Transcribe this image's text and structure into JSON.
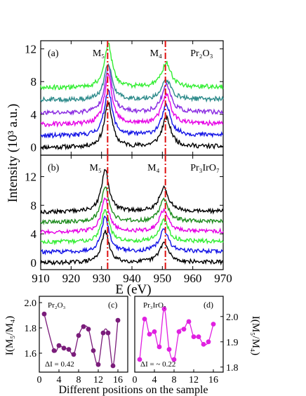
{
  "figure": {
    "ylabel_main": "Intensity (10³ a.u.)",
    "xlabel_main": "E (eV)",
    "xlabel_bottom": "Different positions on the sample"
  },
  "chart_data": [
    {
      "id": "a",
      "type": "line",
      "panel_label": "(a)",
      "peak_labels": [
        "M₅",
        "M₄"
      ],
      "compound": "Pr₂O₃",
      "xlim": [
        910,
        970
      ],
      "ylim": [
        -1,
        13
      ],
      "yticks": [
        0,
        4,
        8,
        12
      ],
      "yticklabels": [
        "0",
        "4",
        "8",
        "12"
      ],
      "xticks": [
        910,
        920,
        930,
        940,
        950,
        960,
        970
      ],
      "xticklabels": [
        "910",
        "920",
        "930",
        "940",
        "950",
        "960",
        "970"
      ],
      "reference_lines": [
        932,
        951
      ],
      "peaks": {
        "m5": 932.2,
        "m4": 951.3
      },
      "series": [
        {
          "color": "#000000",
          "offset": 0.0,
          "m5": 5.5,
          "m4": 3.5
        },
        {
          "color": "#1414e6",
          "offset": 1.4,
          "m5": 5.6,
          "m4": 3.6
        },
        {
          "color": "#e600e6",
          "offset": 2.8,
          "m5": 5.9,
          "m4": 3.6
        },
        {
          "color": "#8a2be2",
          "offset": 4.2,
          "m5": 5.6,
          "m4": 3.4
        },
        {
          "color": "#2e8b8b",
          "offset": 5.8,
          "m5": 4.4,
          "m4": 2.4
        },
        {
          "color": "#33ee33",
          "offset": 7.3,
          "m5": 5.3,
          "m4": 3.0
        }
      ]
    },
    {
      "id": "b",
      "type": "line",
      "panel_label": "(b)",
      "peak_labels": [
        "M₅",
        "M₄"
      ],
      "compound": "Pr₃IrO₇",
      "xlim": [
        910,
        970
      ],
      "ylim": [
        -1,
        15
      ],
      "yticks": [
        0,
        4,
        8,
        12
      ],
      "yticklabels": [
        "0",
        "4",
        "8",
        "12"
      ],
      "xticks": [
        910,
        920,
        930,
        940,
        950,
        960,
        970
      ],
      "xticklabels": [
        "910",
        "920",
        "930",
        "940",
        "950",
        "960",
        "970"
      ],
      "reference_lines": [
        932,
        951
      ],
      "peaks": {
        "m5": 931.2,
        "m4": 950.5
      },
      "series": [
        {
          "color": "#000000",
          "offset": 0.0,
          "m5": 4.3,
          "m4": 2.7
        },
        {
          "color": "#1414e6",
          "offset": 1.5,
          "m5": 4.9,
          "m4": 3.0
        },
        {
          "color": "#33ee33",
          "offset": 2.9,
          "m5": 4.5,
          "m4": 3.0
        },
        {
          "color": "#e600e6",
          "offset": 4.3,
          "m5": 4.6,
          "m4": 3.0
        },
        {
          "color": "#1e8c1e",
          "offset": 5.7,
          "m5": 4.9,
          "m4": 3.0
        },
        {
          "color": "#000000",
          "offset": 7.1,
          "m5": 5.8,
          "m4": 3.3
        }
      ]
    },
    {
      "id": "c",
      "type": "scatter",
      "panel_label": "(c)",
      "compound": "Pr₂O₃",
      "ylabel": "I(M₅/M₄)",
      "annotation": "ΔI = 0.42",
      "color": "#7a1c7a",
      "xlim": [
        0,
        18
      ],
      "ylim": [
        1.45,
        2.05
      ],
      "xticks": [
        0,
        4,
        8,
        12,
        16
      ],
      "xticklabels": [
        "0",
        "4",
        "8",
        "12",
        "16"
      ],
      "yticks": [
        1.6,
        1.8,
        2.0
      ],
      "yticklabels": [
        "1.6",
        "1.8",
        "2.0"
      ],
      "points": [
        [
          1,
          1.91
        ],
        [
          3,
          1.62
        ],
        [
          4,
          1.66
        ],
        [
          5,
          1.64
        ],
        [
          6,
          1.63
        ],
        [
          7,
          1.59
        ],
        [
          8,
          1.74
        ],
        [
          9,
          1.81
        ],
        [
          10,
          1.79
        ],
        [
          11,
          1.62
        ],
        [
          12,
          1.51
        ],
        [
          13,
          1.76
        ],
        [
          14,
          1.76
        ],
        [
          15,
          1.5
        ],
        [
          16,
          1.86
        ]
      ]
    },
    {
      "id": "d",
      "type": "scatter",
      "panel_label": "(d)",
      "compound": "Pr₃IrO₇",
      "ylabel": "I(M₅/M₄)",
      "annotation": "ΔI = ~ 0.22",
      "color": "#e020e0",
      "xlim": [
        0,
        18
      ],
      "ylim": [
        1.78,
        2.08
      ],
      "xticks": [
        0,
        4,
        8,
        12,
        16
      ],
      "xticklabels": [
        "0",
        "4",
        "8",
        "12",
        "16"
      ],
      "yticks": [
        1.8,
        1.9,
        2.0
      ],
      "yticklabels": [
        "1.8",
        "1.9",
        "2.0"
      ],
      "points": [
        [
          1,
          1.83
        ],
        [
          2,
          1.99
        ],
        [
          3,
          1.93
        ],
        [
          4,
          1.94
        ],
        [
          5,
          1.88
        ],
        [
          6,
          2.03
        ],
        [
          7,
          1.87
        ],
        [
          8,
          1.83
        ],
        [
          9,
          1.94
        ],
        [
          10,
          1.95
        ],
        [
          11,
          1.98
        ],
        [
          12,
          1.92
        ],
        [
          13,
          1.92
        ],
        [
          14,
          1.89
        ],
        [
          15,
          1.9
        ],
        [
          16,
          1.97
        ]
      ]
    }
  ]
}
